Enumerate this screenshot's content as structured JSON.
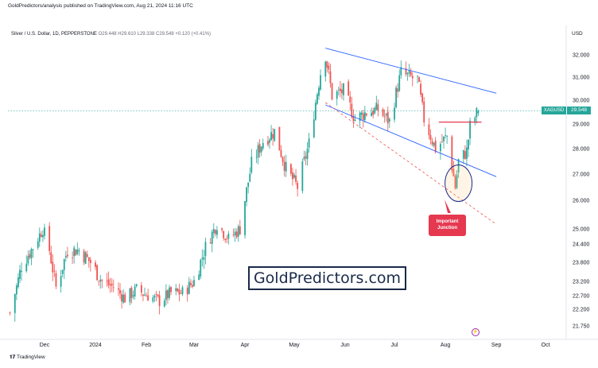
{
  "header": {
    "published_by": "GoldPredictors/analysis published on TradingView.com, Aug 21, 2024 11:16 UTC"
  },
  "instrument": {
    "symbol_line": "Silver / U.S. Dollar, 1D, PEPPERSTONE",
    "ohlc": "O29.448  H29.610  L29.338  C29.548  +0.120 (+0.41%)"
  },
  "price_axis": {
    "currency": "USD",
    "ticks": [
      "32.000",
      "31.000",
      "30.000",
      "29.000",
      "28.000",
      "27.000",
      "26.000",
      "25.000",
      "24.400",
      "23.800",
      "23.200",
      "22.700",
      "22.200",
      "21.750"
    ]
  },
  "time_axis": {
    "ticks": [
      "Dec",
      "2024",
      "Feb",
      "Mar",
      "Apr",
      "May",
      "Jun",
      "Jul",
      "Aug",
      "Sep",
      "Oct"
    ]
  },
  "current_price": {
    "ticker": "XAGUSD",
    "value": "29.548"
  },
  "annotation": {
    "line1": "Important",
    "line2": "Junction"
  },
  "watermark": "GoldPredictors.com",
  "footer": {
    "brand": "TradingView"
  },
  "colors": {
    "up": "#26a69a",
    "down": "#ef5350",
    "channel": "#2962ff",
    "resistance": "#e53950",
    "support_dashed": "#ef5350"
  },
  "chart_data": {
    "type": "candlestick",
    "title": "Silver / U.S. Dollar, 1D, PEPPERSTONE",
    "xlabel": "",
    "ylabel": "USD",
    "y_scale": "log",
    "ylim": [
      21.5,
      33.2
    ],
    "x_range": [
      "2023-11-10",
      "2024-10-10"
    ],
    "close_path": [
      {
        "date": "2023-11-10",
        "close": 22.1
      },
      {
        "date": "2023-11-17",
        "close": 23.7
      },
      {
        "date": "2023-11-24",
        "close": 24.3
      },
      {
        "date": "2023-11-30",
        "close": 25.0
      },
      {
        "date": "2023-12-04",
        "close": 24.2
      },
      {
        "date": "2023-12-08",
        "close": 23.0
      },
      {
        "date": "2023-12-15",
        "close": 24.2
      },
      {
        "date": "2023-12-22",
        "close": 24.2
      },
      {
        "date": "2023-12-29",
        "close": 23.8
      },
      {
        "date": "2024-01-05",
        "close": 23.2
      },
      {
        "date": "2024-01-12",
        "close": 23.0
      },
      {
        "date": "2024-01-19",
        "close": 22.6
      },
      {
        "date": "2024-01-26",
        "close": 22.9
      },
      {
        "date": "2024-02-02",
        "close": 22.7
      },
      {
        "date": "2024-02-09",
        "close": 22.5
      },
      {
        "date": "2024-02-16",
        "close": 22.8
      },
      {
        "date": "2024-02-23",
        "close": 22.8
      },
      {
        "date": "2024-03-01",
        "close": 23.2
      },
      {
        "date": "2024-03-08",
        "close": 24.3
      },
      {
        "date": "2024-03-15",
        "close": 25.2
      },
      {
        "date": "2024-03-22",
        "close": 24.6
      },
      {
        "date": "2024-03-29",
        "close": 25.0
      },
      {
        "date": "2024-04-05",
        "close": 27.4
      },
      {
        "date": "2024-04-12",
        "close": 28.3
      },
      {
        "date": "2024-04-19",
        "close": 28.7
      },
      {
        "date": "2024-04-26",
        "close": 27.2
      },
      {
        "date": "2024-05-03",
        "close": 26.5
      },
      {
        "date": "2024-05-10",
        "close": 28.2
      },
      {
        "date": "2024-05-17",
        "close": 31.2
      },
      {
        "date": "2024-05-20",
        "close": 32.0
      },
      {
        "date": "2024-05-24",
        "close": 30.2
      },
      {
        "date": "2024-05-31",
        "close": 30.4
      },
      {
        "date": "2024-06-07",
        "close": 29.2
      },
      {
        "date": "2024-06-14",
        "close": 29.5
      },
      {
        "date": "2024-06-21",
        "close": 29.6
      },
      {
        "date": "2024-06-28",
        "close": 29.1
      },
      {
        "date": "2024-07-05",
        "close": 31.2
      },
      {
        "date": "2024-07-10",
        "close": 31.0
      },
      {
        "date": "2024-07-15",
        "close": 30.9
      },
      {
        "date": "2024-07-19",
        "close": 29.2
      },
      {
        "date": "2024-07-26",
        "close": 28.0
      },
      {
        "date": "2024-08-02",
        "close": 28.5
      },
      {
        "date": "2024-08-07",
        "close": 26.5
      },
      {
        "date": "2024-08-09",
        "close": 27.5
      },
      {
        "date": "2024-08-14",
        "close": 27.9
      },
      {
        "date": "2024-08-16",
        "close": 28.9
      },
      {
        "date": "2024-08-21",
        "close": 29.55
      }
    ],
    "last": {
      "date": "2024-08-21",
      "open": 29.448,
      "high": 29.61,
      "low": 29.338,
      "close": 29.548
    },
    "drawings": {
      "channel_upper": [
        {
          "date": "2024-05-20",
          "price": 32.3
        },
        {
          "date": "2024-09-01",
          "price": 30.3
        }
      ],
      "channel_lower": [
        {
          "date": "2024-05-20",
          "price": 29.8
        },
        {
          "date": "2024-09-01",
          "price": 26.9
        }
      ],
      "dashed_support": [
        {
          "date": "2024-05-20",
          "price": 29.9
        },
        {
          "date": "2024-08-31",
          "price": 25.2
        }
      ],
      "resistance_line": [
        {
          "date": "2024-07-28",
          "price": 29.08
        },
        {
          "date": "2024-08-23",
          "price": 29.08
        }
      ],
      "circle_center": {
        "date": "2024-08-09",
        "price": 26.65
      },
      "current_price_line": 29.548
    }
  }
}
